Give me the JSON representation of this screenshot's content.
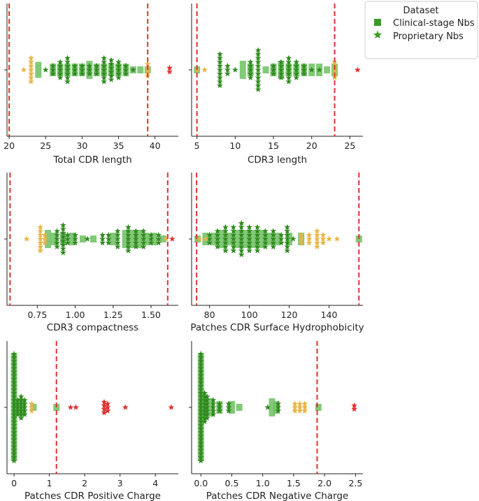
{
  "colors": {
    "clinical_square": "#6cbf60",
    "proprietary_star": "#2f8a1e",
    "outside_range_near": "#e8b446",
    "outside_range_far": "#e03030",
    "threshold_line": "#e03030"
  },
  "legend": {
    "title": "Dataset",
    "entries": [
      {
        "label": "Clinical-stage Nbs",
        "marker": "square",
        "color": "#3a9a2a"
      },
      {
        "label": "Proprietary Nbs",
        "marker": "star",
        "color": "#3a9a2a"
      }
    ]
  },
  "chart_data": [
    {
      "type": "scatter",
      "subtype": "swarm",
      "xlabel": "Total CDR length",
      "xlim": [
        19.7,
        43.2
      ],
      "xticks": [
        20,
        25,
        30,
        35,
        40
      ],
      "thresholds": [
        20,
        39
      ],
      "clinical_squares": [
        [
          24,
          4
        ],
        [
          26,
          2
        ],
        [
          27,
          2
        ],
        [
          28,
          2
        ],
        [
          29,
          2
        ],
        [
          30,
          2
        ],
        [
          31,
          3
        ],
        [
          32,
          2
        ],
        [
          33,
          2
        ],
        [
          34,
          2
        ],
        [
          35,
          2
        ],
        [
          36,
          2
        ],
        [
          37,
          1
        ],
        [
          38,
          1
        ],
        [
          39,
          1
        ]
      ],
      "proprietary_stars": [
        [
          25,
          1
        ],
        [
          26,
          3
        ],
        [
          27,
          5
        ],
        [
          28,
          7
        ],
        [
          29,
          3
        ],
        [
          30,
          3
        ],
        [
          31,
          3
        ],
        [
          32,
          3
        ],
        [
          33,
          7
        ],
        [
          34,
          6
        ],
        [
          35,
          5
        ],
        [
          36,
          3
        ],
        [
          37,
          1
        ]
      ],
      "outlier_stars_near": [
        [
          22,
          1
        ],
        [
          23,
          7
        ],
        [
          39,
          4
        ]
      ],
      "outlier_stars_far": [
        [
          42,
          2
        ]
      ]
    },
    {
      "type": "scatter",
      "subtype": "swarm",
      "xlabel": "CDR3 length",
      "xlim": [
        4.3,
        26.7
      ],
      "xticks": [
        5,
        10,
        15,
        20,
        25
      ],
      "thresholds": [
        5,
        23
      ],
      "clinical_squares": [
        [
          5,
          1
        ],
        [
          11,
          3
        ],
        [
          12,
          2
        ],
        [
          14,
          1
        ],
        [
          15,
          2
        ],
        [
          16,
          3
        ],
        [
          17,
          2
        ],
        [
          18,
          2
        ],
        [
          19,
          2
        ],
        [
          20,
          2
        ],
        [
          21,
          2
        ],
        [
          22,
          1
        ],
        [
          23,
          2
        ]
      ],
      "proprietary_stars": [
        [
          8,
          9
        ],
        [
          9,
          3
        ],
        [
          10,
          1
        ],
        [
          12,
          5
        ],
        [
          13,
          11
        ],
        [
          15,
          3
        ],
        [
          16,
          5
        ],
        [
          17,
          7
        ],
        [
          18,
          5
        ],
        [
          19,
          3
        ],
        [
          20,
          1
        ],
        [
          21,
          1
        ]
      ],
      "outlier_stars_near": [
        [
          5,
          1
        ],
        [
          6,
          1
        ],
        [
          23,
          5
        ]
      ],
      "outlier_stars_far": [
        [
          26,
          1
        ]
      ]
    },
    {
      "type": "scatter",
      "subtype": "swarm",
      "xlabel": "CDR3 compactness",
      "xlim": [
        0.55,
        1.68
      ],
      "xticks": [
        0.75,
        1.0,
        1.25,
        1.5
      ],
      "tick_labels": [
        "0.75",
        "1.00",
        "1.25",
        "1.50"
      ],
      "thresholds": [
        0.57,
        1.61
      ],
      "clinical_squares": [
        [
          0.82,
          3
        ],
        [
          0.86,
          2
        ],
        [
          0.92,
          2
        ],
        [
          0.98,
          2
        ],
        [
          1.05,
          1
        ],
        [
          1.12,
          1
        ],
        [
          1.25,
          2
        ],
        [
          1.33,
          3
        ],
        [
          1.38,
          3
        ],
        [
          1.42,
          3
        ],
        [
          1.47,
          2
        ],
        [
          1.52,
          2
        ],
        [
          1.58,
          1
        ]
      ],
      "proprietary_stars": [
        [
          0.88,
          5
        ],
        [
          0.92,
          8
        ],
        [
          0.95,
          3
        ],
        [
          1.0,
          3
        ],
        [
          1.08,
          1
        ],
        [
          1.18,
          3
        ],
        [
          1.22,
          3
        ],
        [
          1.28,
          5
        ],
        [
          1.35,
          7
        ],
        [
          1.4,
          5
        ],
        [
          1.45,
          5
        ],
        [
          1.5,
          3
        ],
        [
          1.55,
          3
        ]
      ],
      "outlier_stars_near": [
        [
          0.68,
          1
        ],
        [
          0.77,
          7
        ],
        [
          0.8,
          3
        ],
        [
          1.6,
          1
        ]
      ],
      "outlier_stars_far": [
        [
          1.64,
          1
        ]
      ]
    },
    {
      "type": "scatter",
      "subtype": "swarm",
      "xlabel": "Patches CDR Surface Hydrophobicity",
      "xlim": [
        71,
        157
      ],
      "xticks": [
        80,
        100,
        120,
        140
      ],
      "thresholds": [
        73.5,
        155
      ],
      "clinical_squares": [
        [
          74,
          1
        ],
        [
          78,
          2
        ],
        [
          82,
          2
        ],
        [
          86,
          3
        ],
        [
          90,
          2
        ],
        [
          94,
          3
        ],
        [
          98,
          3
        ],
        [
          102,
          3
        ],
        [
          106,
          3
        ],
        [
          110,
          2
        ],
        [
          114,
          2
        ],
        [
          120,
          2
        ],
        [
          126,
          2
        ],
        [
          155,
          1
        ]
      ],
      "proprietary_stars": [
        [
          80,
          3
        ],
        [
          84,
          5
        ],
        [
          88,
          7
        ],
        [
          92,
          7
        ],
        [
          96,
          9
        ],
        [
          100,
          7
        ],
        [
          104,
          7
        ],
        [
          108,
          5
        ],
        [
          112,
          5
        ],
        [
          116,
          3
        ],
        [
          119,
          7
        ],
        [
          122,
          1
        ]
      ],
      "outlier_stars_near": [
        [
          75,
          1
        ],
        [
          78,
          1
        ],
        [
          126,
          3
        ],
        [
          130,
          3
        ],
        [
          134,
          5
        ],
        [
          137,
          3
        ],
        [
          140,
          1
        ],
        [
          144,
          1
        ]
      ],
      "outlier_stars_far": []
    },
    {
      "type": "scatter",
      "subtype": "swarm",
      "xlabel": "Patches CDR Positive Charge",
      "xlim": [
        -0.2,
        4.65
      ],
      "xticks": [
        0,
        1,
        2,
        3,
        4
      ],
      "thresholds": [
        1.2
      ],
      "clinical_squares": [
        [
          0.0,
          30
        ],
        [
          0.2,
          3
        ],
        [
          0.55,
          1
        ],
        [
          1.2,
          1
        ]
      ],
      "proprietary_stars": [
        [
          0.0,
          31
        ],
        [
          0.1,
          5
        ],
        [
          0.2,
          7
        ],
        [
          0.3,
          5
        ]
      ],
      "outlier_stars_near": [
        [
          0.5,
          3
        ]
      ],
      "outlier_stars_far": [
        [
          1.6,
          1
        ],
        [
          1.75,
          1
        ],
        [
          2.55,
          4
        ],
        [
          2.65,
          3
        ],
        [
          3.15,
          1
        ],
        [
          4.45,
          1
        ]
      ]
    },
    {
      "type": "scatter",
      "subtype": "swarm",
      "xlabel": "Patches CDR Negative Charge",
      "xlim": [
        -0.15,
        2.62
      ],
      "xticks": [
        0.0,
        0.5,
        1.0,
        1.5,
        2.0,
        2.5
      ],
      "tick_labels": [
        "0.0",
        "0.5",
        "1.0",
        "1.5",
        "2.0",
        "2.5"
      ],
      "thresholds": [
        1.88
      ],
      "clinical_squares": [
        [
          0.0,
          30
        ],
        [
          0.15,
          3
        ],
        [
          0.3,
          2
        ],
        [
          0.5,
          2
        ],
        [
          0.62,
          1
        ],
        [
          1.15,
          3
        ],
        [
          1.22,
          2
        ],
        [
          1.9,
          1
        ]
      ],
      "proprietary_stars": [
        [
          0.0,
          31
        ],
        [
          0.06,
          9
        ],
        [
          0.1,
          7
        ],
        [
          0.2,
          5
        ],
        [
          0.3,
          3
        ],
        [
          0.45,
          3
        ],
        [
          1.08,
          1
        ],
        [
          1.25,
          3
        ]
      ],
      "outlier_stars_near": [
        [
          1.52,
          3
        ],
        [
          1.6,
          3
        ],
        [
          1.68,
          3
        ]
      ],
      "outlier_stars_far": [
        [
          2.48,
          2
        ]
      ]
    }
  ]
}
